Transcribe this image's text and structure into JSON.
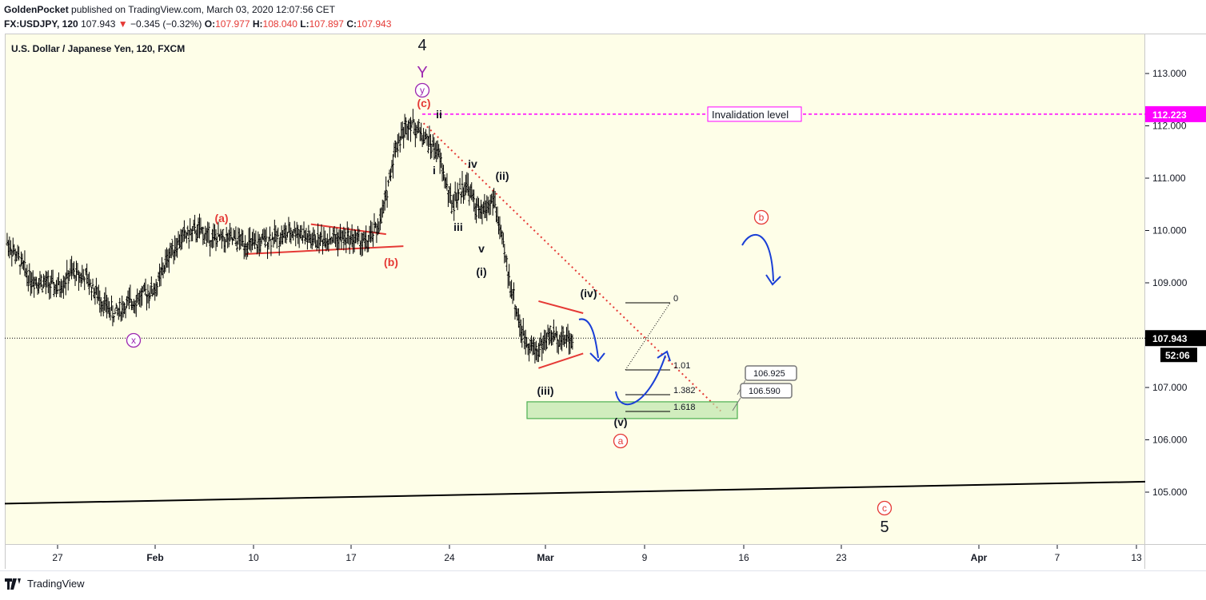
{
  "header": {
    "author": "GoldenPocket",
    "published_text": "published on TradingView.com, March 03, 2020 12:07:56 CET",
    "symbol": "FX:USDJPY, 120",
    "last": "107.943",
    "change": "−0.345 (−0.32%)",
    "open_label": "O:",
    "open": "107.977",
    "high_label": "H:",
    "high": "108.040",
    "low_label": "L:",
    "low": "107.897",
    "close_label": "C:",
    "close": "107.943"
  },
  "legend_title": "U.S. Dollar / Japanese Yen, 120, FXCM",
  "footer": {
    "brand": "TradingView",
    "icon": "tradingview-logo-icon"
  },
  "colors": {
    "background": "#fefee8",
    "candles": "#000000",
    "red_annotation": "#e53935",
    "purple_annotation": "#9c27b0",
    "magenta_level": "#ff00ff",
    "projection_blue": "#1a3fd6",
    "target_zone": "#b9e3a8"
  },
  "chart_data": {
    "type": "bar",
    "title": "U.S. Dollar / Japanese Yen, 120, FXCM",
    "xlabel": "",
    "ylabel": "",
    "ylim": [
      104.0,
      113.8
    ],
    "grid": false,
    "y_ticks": [
      "113.000",
      "112.000",
      "111.000",
      "110.000",
      "109.000",
      "108.000",
      "107.000",
      "106.000",
      "105.000"
    ],
    "x_ticks": [
      "27",
      "Feb",
      "10",
      "17",
      "24",
      "Mar",
      "9",
      "16",
      "23",
      "Apr",
      "7",
      "13"
    ],
    "price_path": [
      [
        "Jan 23",
        109.95
      ],
      [
        "Jan 24",
        109.55
      ],
      [
        "Jan 25",
        109.1
      ],
      [
        "Jan 26",
        109.0
      ],
      [
        "Jan 27",
        108.9
      ],
      [
        "Jan 28",
        109.2
      ],
      [
        "Jan 29",
        109.1
      ],
      [
        "Jan 30",
        108.7
      ],
      [
        "Jan 31",
        108.4
      ],
      [
        "Feb 01",
        108.6
      ],
      [
        "Feb 03",
        108.9
      ],
      [
        "Feb 04",
        109.6
      ],
      [
        "Feb 05",
        109.9
      ],
      [
        "Feb 06",
        110.0
      ],
      [
        "Feb 07",
        109.85
      ],
      [
        "Feb 09",
        109.8
      ],
      [
        "Feb 10",
        109.7
      ],
      [
        "Feb 11",
        109.85
      ],
      [
        "Feb 12",
        109.9
      ],
      [
        "Feb 13",
        110.0
      ],
      [
        "Feb 14",
        109.8
      ],
      [
        "Feb 15",
        109.85
      ],
      [
        "Feb 17",
        109.85
      ],
      [
        "Feb 18",
        109.75
      ],
      [
        "Feb 19",
        110.2
      ],
      [
        "Feb 20",
        111.6
      ],
      [
        "Feb 21",
        112.1
      ],
      [
        "Feb 22",
        111.8
      ],
      [
        "Feb 23",
        111.5
      ],
      [
        "Feb 24",
        110.5
      ],
      [
        "Feb 25",
        110.9
      ],
      [
        "Feb 26",
        110.3
      ],
      [
        "Feb 27",
        110.6
      ],
      [
        "Feb 28",
        109.2
      ],
      [
        "Feb 29",
        108.0
      ],
      [
        "Mar 01",
        107.7
      ],
      [
        "Mar 02",
        108.0
      ],
      [
        "Mar 03",
        107.943
      ]
    ],
    "last_price": "107.943",
    "bar_countdown": "52:06",
    "invalidation": {
      "label": "Invalidation level",
      "price": "112.223"
    },
    "fib_levels": [
      {
        "label": "0",
        "price": 108.65
      },
      {
        "label": "1.01",
        "price": 107.4
      },
      {
        "label": "1.382",
        "price": 106.9
      },
      {
        "label": "1.618",
        "price": 106.6
      }
    ],
    "target_zone": {
      "high": "106.925",
      "low": "106.590"
    },
    "wave_labels": [
      {
        "text": "4",
        "date": "Feb 21",
        "price": 113.55,
        "color": "#131722"
      },
      {
        "text": "Y",
        "date": "Feb 21",
        "price": 113.0,
        "color": "#9c27b0"
      },
      {
        "text": "y",
        "date": "Feb 21",
        "price": 112.7,
        "color": "#9c27b0",
        "circle": true
      },
      {
        "text": "(c)",
        "date": "Feb 21",
        "price": 112.45,
        "color": "#e53935"
      },
      {
        "text": "ii",
        "date": "Feb 22",
        "price": 112.2,
        "color": "#131722"
      },
      {
        "text": "i",
        "date": "Feb 22",
        "price": 111.15,
        "color": "#131722"
      },
      {
        "text": "iv",
        "date": "Feb 24",
        "price": 111.3,
        "color": "#131722"
      },
      {
        "text": "(ii)",
        "date": "Feb 25",
        "price": 111.05,
        "color": "#131722"
      },
      {
        "text": "iii",
        "date": "Feb 24",
        "price": 110.1,
        "color": "#131722"
      },
      {
        "text": "v",
        "date": "Feb 25",
        "price": 109.65,
        "color": "#131722"
      },
      {
        "text": "(i)",
        "date": "Feb 25",
        "price": 109.25,
        "color": "#131722"
      },
      {
        "text": "(iv)",
        "date": "Mar 03",
        "price": 108.95,
        "color": "#131722"
      },
      {
        "text": "(iii)",
        "date": "Mar 01",
        "price": 107.0,
        "color": "#131722"
      },
      {
        "text": "(v)",
        "date": "Mar 05",
        "price": 106.4,
        "color": "#131722"
      },
      {
        "text": "a",
        "date": "Mar 05",
        "price": 106.0,
        "color": "#e53935",
        "circle": true
      },
      {
        "text": "(a)",
        "date": "Feb 06",
        "price": 110.25,
        "color": "#e53935"
      },
      {
        "text": "(b)",
        "date": "Feb 18",
        "price": 109.35,
        "color": "#e53935"
      },
      {
        "text": "x",
        "date": "Jan 30",
        "price": 107.9,
        "color": "#9c27b0",
        "circle": true
      },
      {
        "text": "b",
        "date": "Mar 17",
        "price": 110.3,
        "color": "#e53935",
        "circle": true
      },
      {
        "text": "c",
        "date": "Mar 29",
        "price": 105.25,
        "color": "#e53935",
        "circle": true
      },
      {
        "text": "5",
        "date": "Mar 29",
        "price": 104.8,
        "color": "#131722"
      }
    ]
  }
}
